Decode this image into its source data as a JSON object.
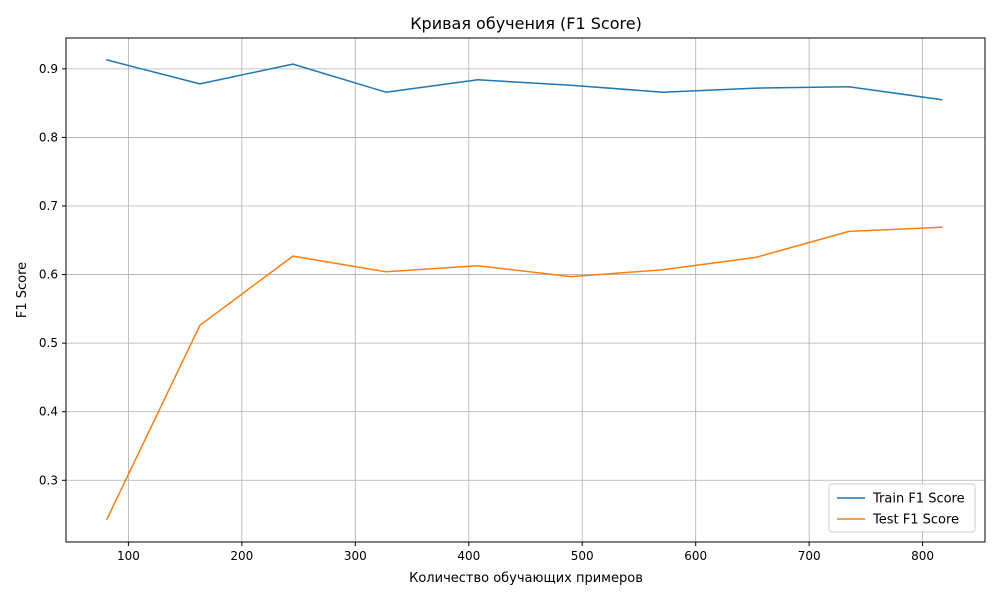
{
  "chart_data": {
    "type": "line",
    "title": "Кривая обучения (F1 Score)",
    "xlabel": "Количество обучающих примеров",
    "ylabel": "F1 Score",
    "xlim": [
      45,
      855
    ],
    "ylim": [
      0.21,
      0.945
    ],
    "xticks": [
      100,
      200,
      300,
      400,
      500,
      600,
      700,
      800
    ],
    "yticks": [
      0.3,
      0.4,
      0.5,
      0.6,
      0.7,
      0.8,
      0.9
    ],
    "grid": true,
    "legend_position": "lower-right",
    "x": [
      81,
      163,
      245,
      327,
      408,
      490,
      571,
      653,
      735,
      817
    ],
    "series": [
      {
        "name": "Train F1 Score",
        "color": "#1f77b4",
        "values": [
          0.913,
          0.878,
          0.907,
          0.866,
          0.884,
          0.876,
          0.866,
          0.872,
          0.874,
          0.855
        ]
      },
      {
        "name": "Test F1 Score",
        "color": "#ff7f0e",
        "values": [
          0.243,
          0.526,
          0.627,
          0.604,
          0.613,
          0.597,
          0.607,
          0.625,
          0.663,
          0.669
        ]
      }
    ]
  }
}
